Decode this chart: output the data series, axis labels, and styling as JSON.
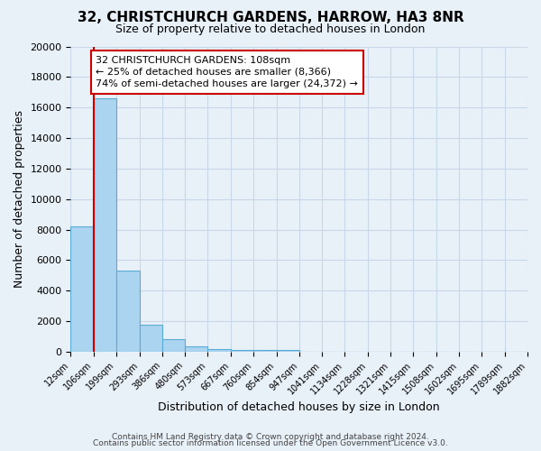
{
  "title": "32, CHRISTCHURCH GARDENS, HARROW, HA3 8NR",
  "subtitle": "Size of property relative to detached houses in London",
  "xlabel": "Distribution of detached houses by size in London",
  "ylabel": "Number of detached properties",
  "bin_labels": [
    "12sqm",
    "106sqm",
    "199sqm",
    "293sqm",
    "386sqm",
    "480sqm",
    "573sqm",
    "667sqm",
    "760sqm",
    "854sqm",
    "947sqm",
    "1041sqm",
    "1134sqm",
    "1228sqm",
    "1321sqm",
    "1415sqm",
    "1508sqm",
    "1602sqm",
    "1695sqm",
    "1789sqm",
    "1882sqm"
  ],
  "bin_edges": [
    12,
    106,
    199,
    293,
    386,
    480,
    573,
    667,
    760,
    854,
    947,
    1041,
    1134,
    1228,
    1321,
    1415,
    1508,
    1602,
    1695,
    1789,
    1882
  ],
  "bar_heights": [
    8200,
    16600,
    5300,
    1800,
    800,
    350,
    200,
    130,
    130,
    100,
    0,
    0,
    0,
    0,
    0,
    0,
    0,
    0,
    0,
    0
  ],
  "bar_color": "#aad4f0",
  "bar_edge_color": "#5bacd4",
  "property_line_x": 108,
  "property_line_color": "#cc0000",
  "annotation_title": "32 CHRISTCHURCH GARDENS: 108sqm",
  "annotation_line1": "← 25% of detached houses are smaller (8,366)",
  "annotation_line2": "74% of semi-detached houses are larger (24,372) →",
  "annotation_box_facecolor": "#ffffff",
  "annotation_box_edgecolor": "#cc0000",
  "ylim": [
    0,
    20000
  ],
  "yticks": [
    0,
    2000,
    4000,
    6000,
    8000,
    10000,
    12000,
    14000,
    16000,
    18000,
    20000
  ],
  "grid_color": "#c8d8e8",
  "footer1": "Contains HM Land Registry data © Crown copyright and database right 2024.",
  "footer2": "Contains public sector information licensed under the Open Government Licence v3.0.",
  "bg_color": "#e8f0f8",
  "title_fontsize": 11,
  "subtitle_fontsize": 9,
  "ylabel_fontsize": 9,
  "xlabel_fontsize": 9,
  "tick_fontsize": 8,
  "xtick_fontsize": 7,
  "footer_fontsize": 6.5,
  "ann_fontsize": 8
}
